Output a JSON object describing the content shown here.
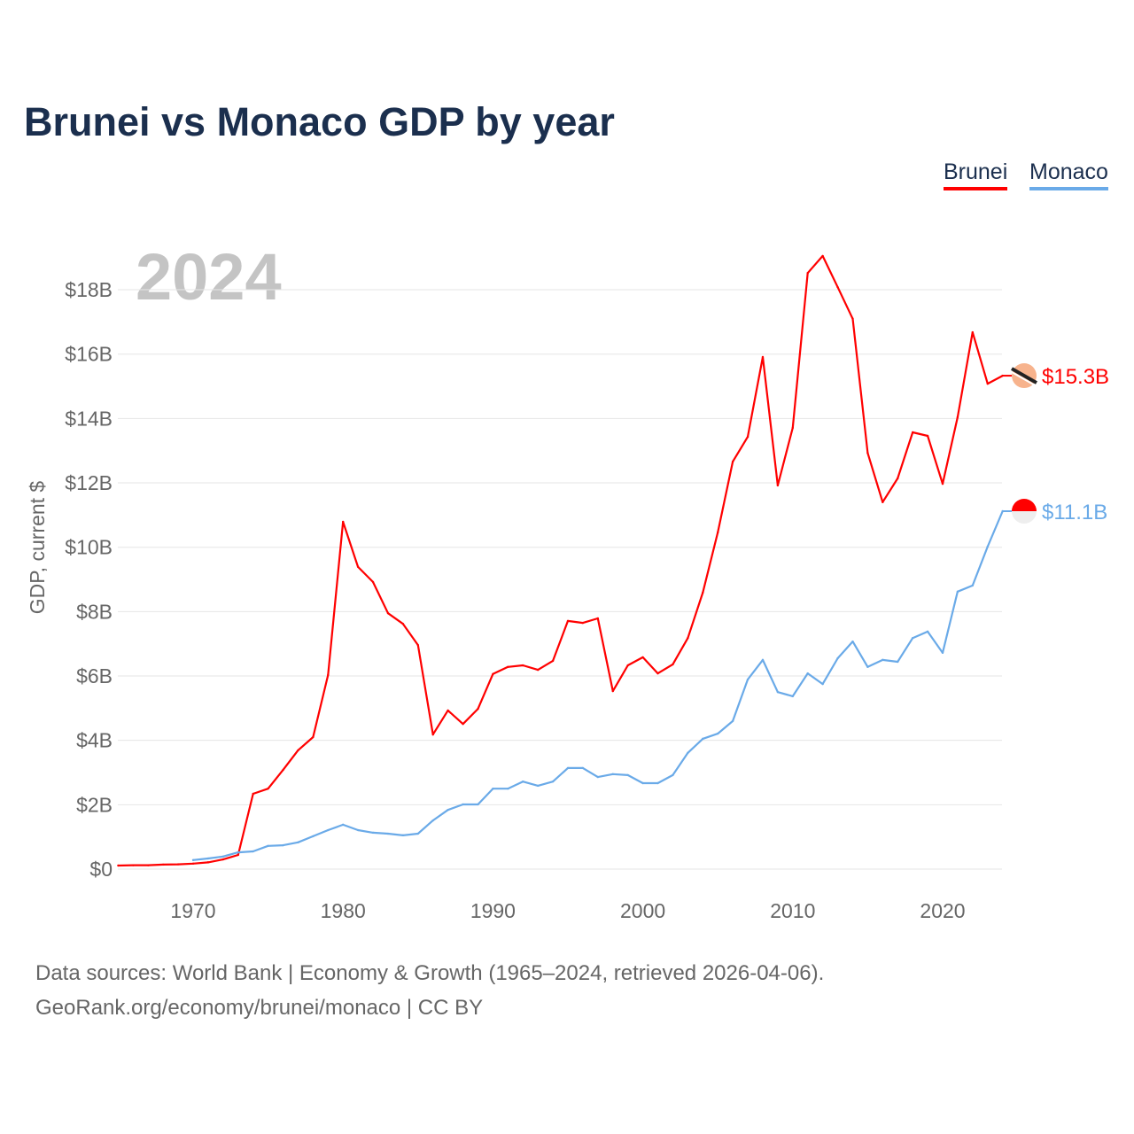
{
  "chart_data": {
    "type": "line",
    "title": "Brunei vs Monaco GDP by year",
    "ylabel": "GDP, current $",
    "xlabel": "",
    "year_overlay": "2024",
    "xlim": [
      1965,
      2024
    ],
    "ylim": [
      0,
      19.5
    ],
    "x_ticks": [
      1970,
      1980,
      1990,
      2000,
      2010,
      2020
    ],
    "y_ticks": [
      0,
      2,
      4,
      6,
      8,
      10,
      12,
      14,
      16,
      18
    ],
    "y_tick_labels": [
      "$0",
      "$2B",
      "$4B",
      "$6B",
      "$8B",
      "$10B",
      "$12B",
      "$14B",
      "$16B",
      "$18B"
    ],
    "grid": true,
    "legend_placement": "top-right",
    "unit": "billion USD",
    "series": [
      {
        "name": "Brunei",
        "color": "#ff0000",
        "end_label": "$15.3B",
        "start_year": 1965,
        "values": [
          0.11,
          0.12,
          0.12,
          0.14,
          0.15,
          0.17,
          0.21,
          0.3,
          0.44,
          2.34,
          2.5,
          3.08,
          3.69,
          4.1,
          6.03,
          10.79,
          9.39,
          8.92,
          7.95,
          7.62,
          6.96,
          4.18,
          4.93,
          4.51,
          4.98,
          6.06,
          6.28,
          6.33,
          6.19,
          6.47,
          7.71,
          7.65,
          7.79,
          5.53,
          6.33,
          6.58,
          6.08,
          6.36,
          7.18,
          8.59,
          10.46,
          12.66,
          13.43,
          15.91,
          11.92,
          13.71,
          18.52,
          19.05,
          18.08,
          17.1,
          12.93,
          11.4,
          12.14,
          13.57,
          13.46,
          11.97,
          14.04,
          16.68,
          15.08,
          15.33
        ]
      },
      {
        "name": "Monaco",
        "color": "#6aaae8",
        "end_label": "$11.1B",
        "start_year": 1970,
        "values": [
          0.28,
          0.33,
          0.39,
          0.52,
          0.55,
          0.72,
          0.74,
          0.83,
          1.02,
          1.21,
          1.38,
          1.21,
          1.13,
          1.1,
          1.05,
          1.1,
          1.51,
          1.84,
          2.01,
          2.01,
          2.5,
          2.5,
          2.72,
          2.59,
          2.72,
          3.14,
          3.14,
          2.86,
          2.95,
          2.92,
          2.67,
          2.67,
          2.92,
          3.61,
          4.05,
          4.21,
          4.6,
          5.89,
          6.5,
          5.5,
          5.37,
          6.08,
          5.75,
          6.55,
          7.07,
          6.28,
          6.5,
          6.44,
          7.18,
          7.38,
          6.72,
          8.62,
          8.81,
          10.02,
          11.12
        ]
      }
    ]
  },
  "legend": {
    "brunei": "Brunei",
    "monaco": "Monaco"
  },
  "footer": {
    "line1": "Data sources: World Bank | Economy & Growth (1965–2024, retrieved 2026-04-06).",
    "line2": "GeoRank.org/economy/brunei/monaco | CC BY"
  }
}
